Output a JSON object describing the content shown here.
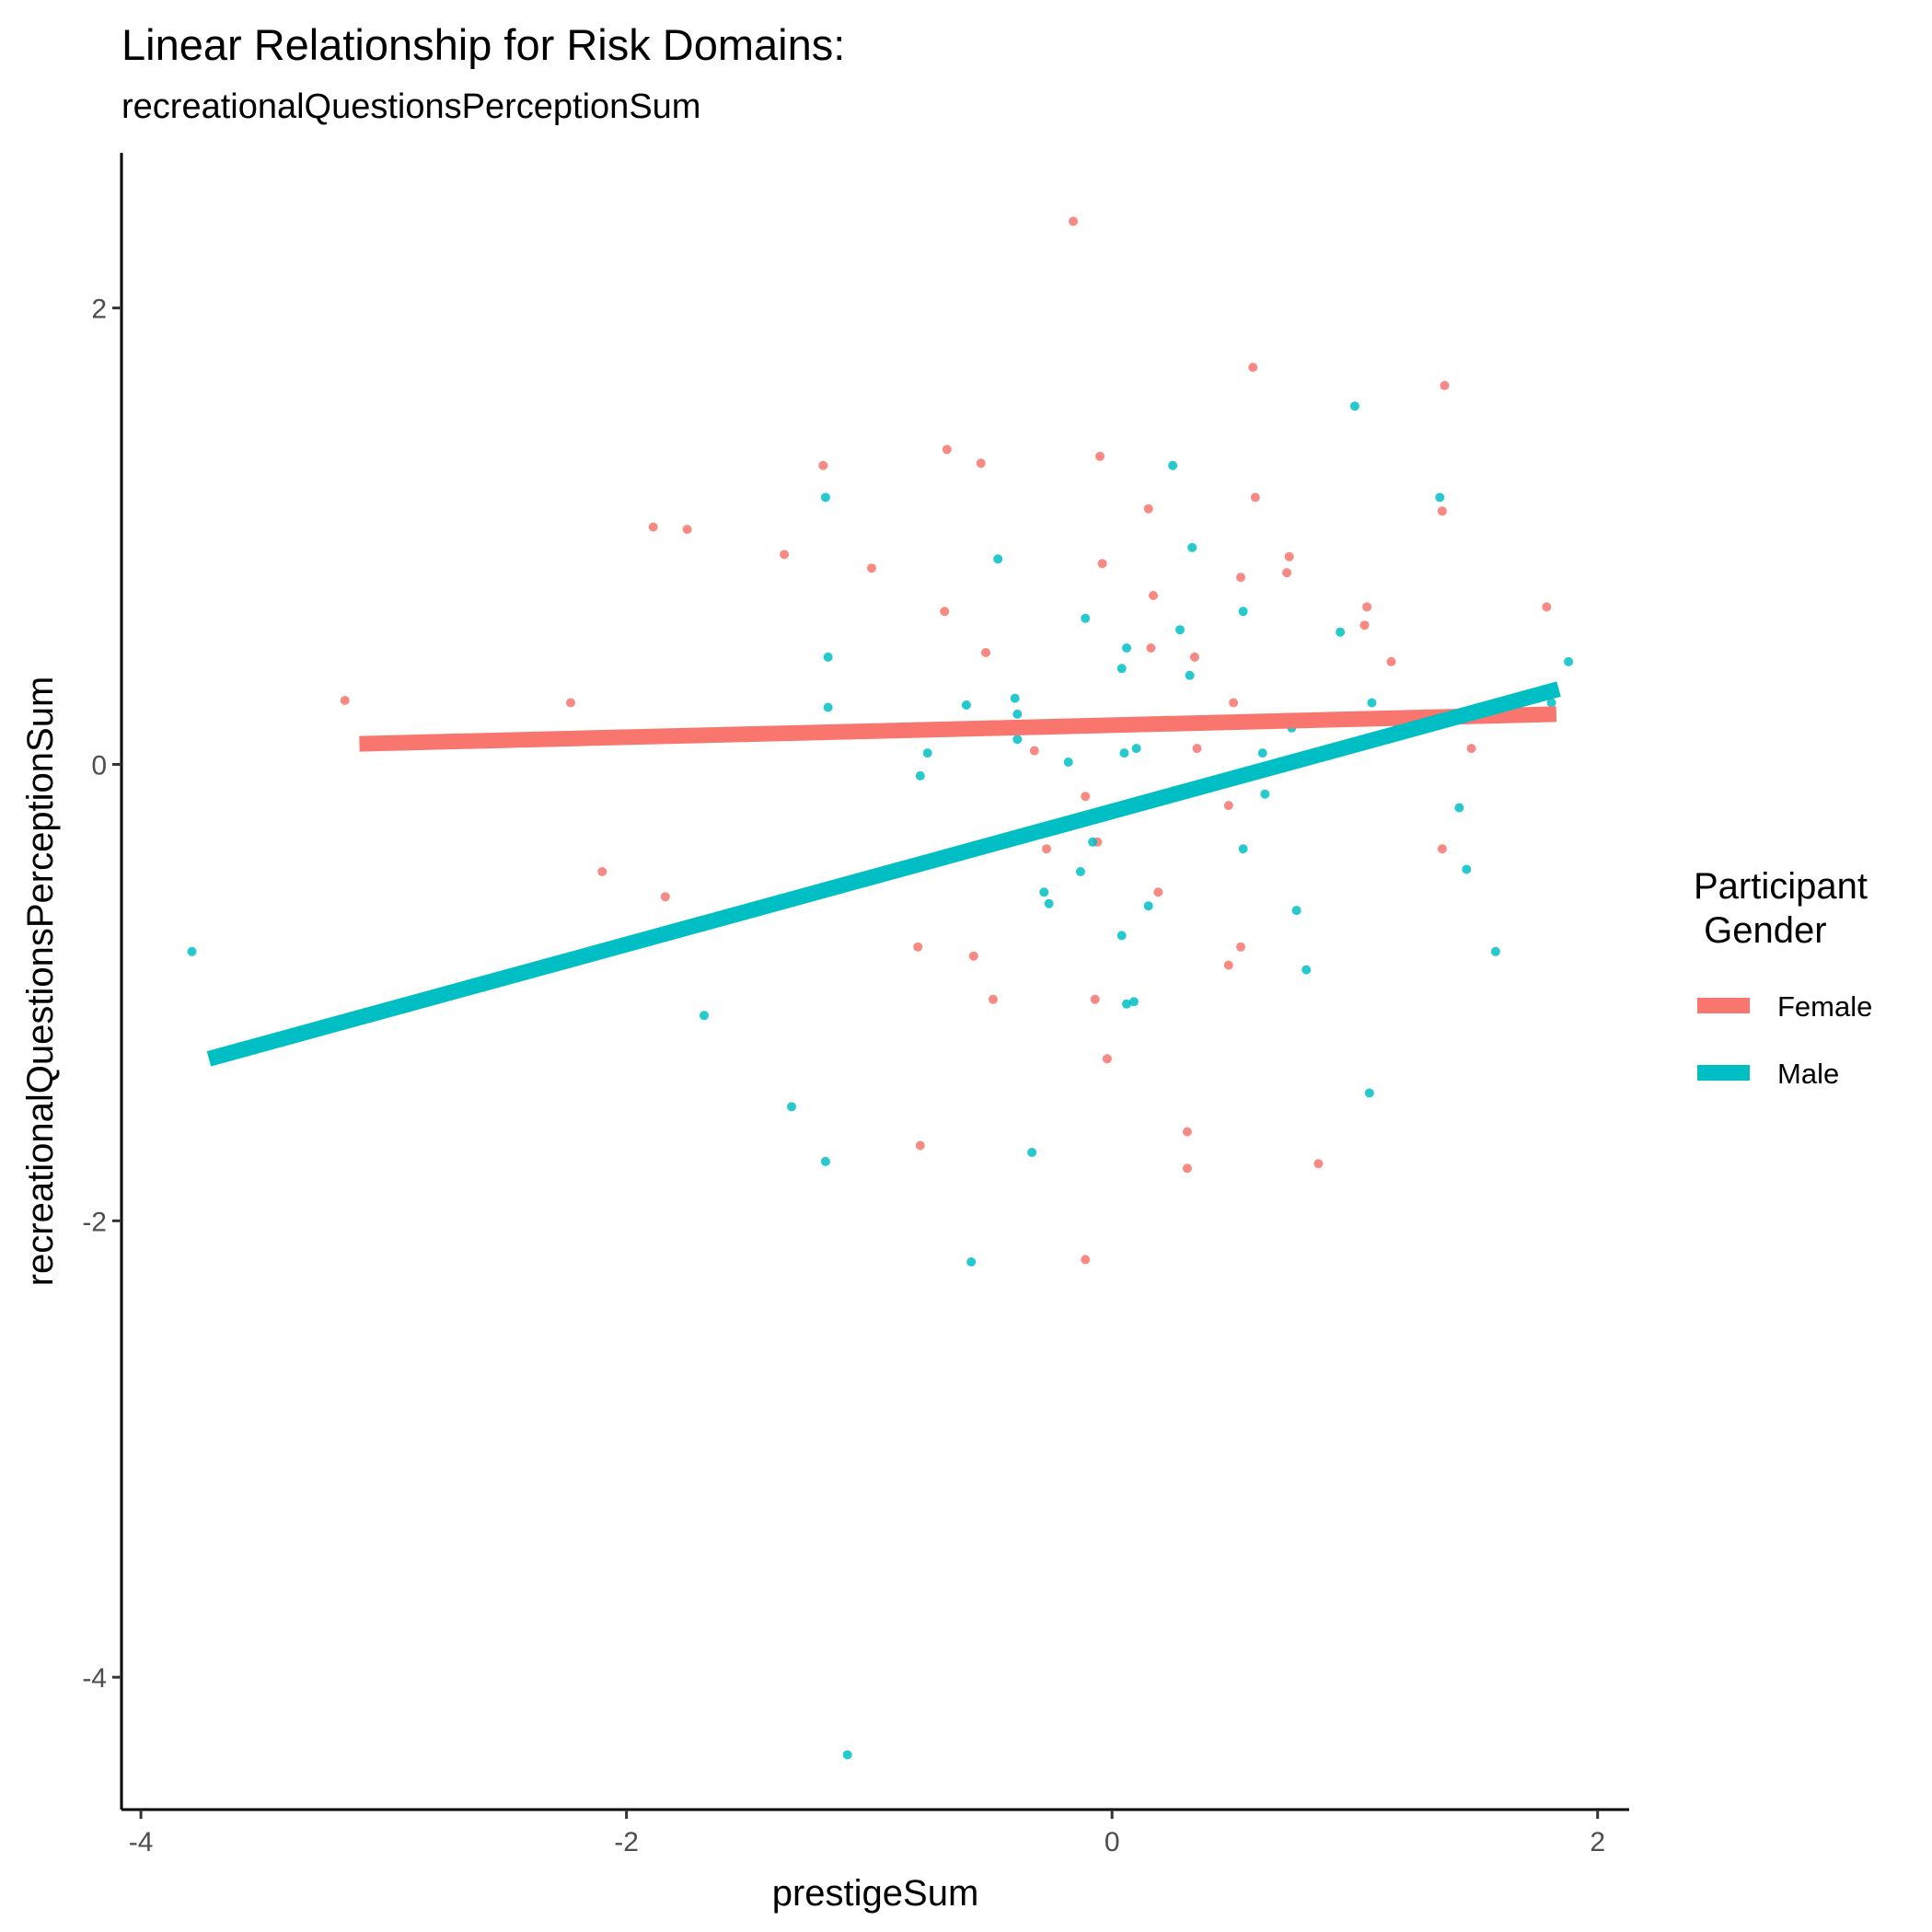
{
  "chart_data": {
    "type": "scatter",
    "title": "Linear Relationship for Risk Domains:",
    "subtitle": "recreationalQuestionsPerceptionSum",
    "xlabel": "prestigeSum",
    "ylabel": "recreationalQuestionsPerceptionSum",
    "xlim": [
      -4.08,
      2.13
    ],
    "ylim": [
      -4.58,
      2.68
    ],
    "x_ticks": [
      -4,
      -2,
      0,
      2
    ],
    "x_tick_labels": [
      "-4",
      "-2",
      "0",
      "2"
    ],
    "y_ticks": [
      -4,
      -2,
      0,
      2
    ],
    "y_tick_labels": [
      "-4",
      "-2",
      "0",
      "2"
    ],
    "grid": false,
    "legend": {
      "title": "Participant\n Gender",
      "position": "right",
      "entries": [
        "Female",
        "Male"
      ]
    },
    "series": [
      {
        "name": "Female",
        "color": "#F8766D",
        "points": [
          [
            -0.16,
            2.38
          ],
          [
            0.58,
            1.74
          ],
          [
            1.37,
            1.66
          ],
          [
            -1.19,
            1.31
          ],
          [
            -0.68,
            1.38
          ],
          [
            -0.54,
            1.32
          ],
          [
            -0.05,
            1.35
          ],
          [
            0.59,
            1.17
          ],
          [
            0.15,
            1.12
          ],
          [
            1.36,
            1.11
          ],
          [
            -1.89,
            1.04
          ],
          [
            -1.75,
            1.03
          ],
          [
            -1.35,
            0.92
          ],
          [
            -0.99,
            0.86
          ],
          [
            -0.04,
            0.88
          ],
          [
            0.73,
            0.91
          ],
          [
            0.53,
            0.82
          ],
          [
            0.72,
            0.84
          ],
          [
            0.17,
            0.74
          ],
          [
            -0.69,
            0.67
          ],
          [
            1.05,
            0.69
          ],
          [
            1.79,
            0.69
          ],
          [
            1.04,
            0.61
          ],
          [
            0.16,
            0.51
          ],
          [
            -0.52,
            0.49
          ],
          [
            0.34,
            0.47
          ],
          [
            1.15,
            0.45
          ],
          [
            -3.16,
            0.28
          ],
          [
            -2.23,
            0.27
          ],
          [
            0.5,
            0.27
          ],
          [
            -0.32,
            0.06
          ],
          [
            0.35,
            0.07
          ],
          [
            1.48,
            0.07
          ],
          [
            -0.11,
            -0.14
          ],
          [
            0.48,
            -0.18
          ],
          [
            -0.27,
            -0.37
          ],
          [
            -0.06,
            -0.34
          ],
          [
            1.36,
            -0.37
          ],
          [
            -2.1,
            -0.47
          ],
          [
            -1.84,
            -0.58
          ],
          [
            0.19,
            -0.56
          ],
          [
            -0.8,
            -0.8
          ],
          [
            -0.57,
            -0.84
          ],
          [
            0.53,
            -0.8
          ],
          [
            0.48,
            -0.88
          ],
          [
            -0.49,
            -1.03
          ],
          [
            -0.07,
            -1.03
          ],
          [
            -0.02,
            -1.29
          ],
          [
            -0.79,
            -1.67
          ],
          [
            0.31,
            -1.61
          ],
          [
            0.31,
            -1.77
          ],
          [
            0.85,
            -1.75
          ],
          [
            -0.11,
            -2.17
          ]
        ],
        "fit_line": {
          "x": [
            -3.1,
            1.83
          ],
          "y": [
            0.09,
            0.22
          ]
        }
      },
      {
        "name": "Male",
        "color": "#00BFC4",
        "points": [
          [
            1.0,
            1.57
          ],
          [
            0.25,
            1.31
          ],
          [
            -1.18,
            1.17
          ],
          [
            1.35,
            1.17
          ],
          [
            0.33,
            0.95
          ],
          [
            -0.47,
            0.9
          ],
          [
            0.54,
            0.67
          ],
          [
            -0.11,
            0.64
          ],
          [
            0.28,
            0.59
          ],
          [
            0.94,
            0.58
          ],
          [
            0.06,
            0.51
          ],
          [
            -1.17,
            0.47
          ],
          [
            1.88,
            0.45
          ],
          [
            0.04,
            0.42
          ],
          [
            0.32,
            0.39
          ],
          [
            -0.4,
            0.29
          ],
          [
            -0.6,
            0.26
          ],
          [
            -1.17,
            0.25
          ],
          [
            1.07,
            0.27
          ],
          [
            1.81,
            0.27
          ],
          [
            -0.39,
            0.22
          ],
          [
            1.39,
            0.19
          ],
          [
            0.74,
            0.16
          ],
          [
            -0.39,
            0.11
          ],
          [
            0.1,
            0.07
          ],
          [
            -0.76,
            0.05
          ],
          [
            0.05,
            0.05
          ],
          [
            0.62,
            0.05
          ],
          [
            -0.18,
            0.01
          ],
          [
            -0.79,
            -0.05
          ],
          [
            0.63,
            -0.13
          ],
          [
            1.43,
            -0.19
          ],
          [
            0.54,
            -0.37
          ],
          [
            -0.08,
            -0.34
          ],
          [
            -0.13,
            -0.47
          ],
          [
            1.46,
            -0.46
          ],
          [
            -0.28,
            -0.56
          ],
          [
            -0.26,
            -0.61
          ],
          [
            0.15,
            -0.62
          ],
          [
            0.76,
            -0.64
          ],
          [
            0.04,
            -0.75
          ],
          [
            -3.79,
            -0.82
          ],
          [
            1.58,
            -0.82
          ],
          [
            0.8,
            -0.9
          ],
          [
            0.09,
            -1.04
          ],
          [
            0.06,
            -1.05
          ],
          [
            -1.68,
            -1.1
          ],
          [
            1.06,
            -1.44
          ],
          [
            -1.32,
            -1.5
          ],
          [
            -0.33,
            -1.7
          ],
          [
            -1.18,
            -1.74
          ],
          [
            -0.58,
            -2.18
          ],
          [
            -1.09,
            -4.34
          ]
        ],
        "fit_line": {
          "x": [
            -3.72,
            1.84
          ],
          "y": [
            -1.29,
            0.33
          ]
        }
      }
    ]
  }
}
